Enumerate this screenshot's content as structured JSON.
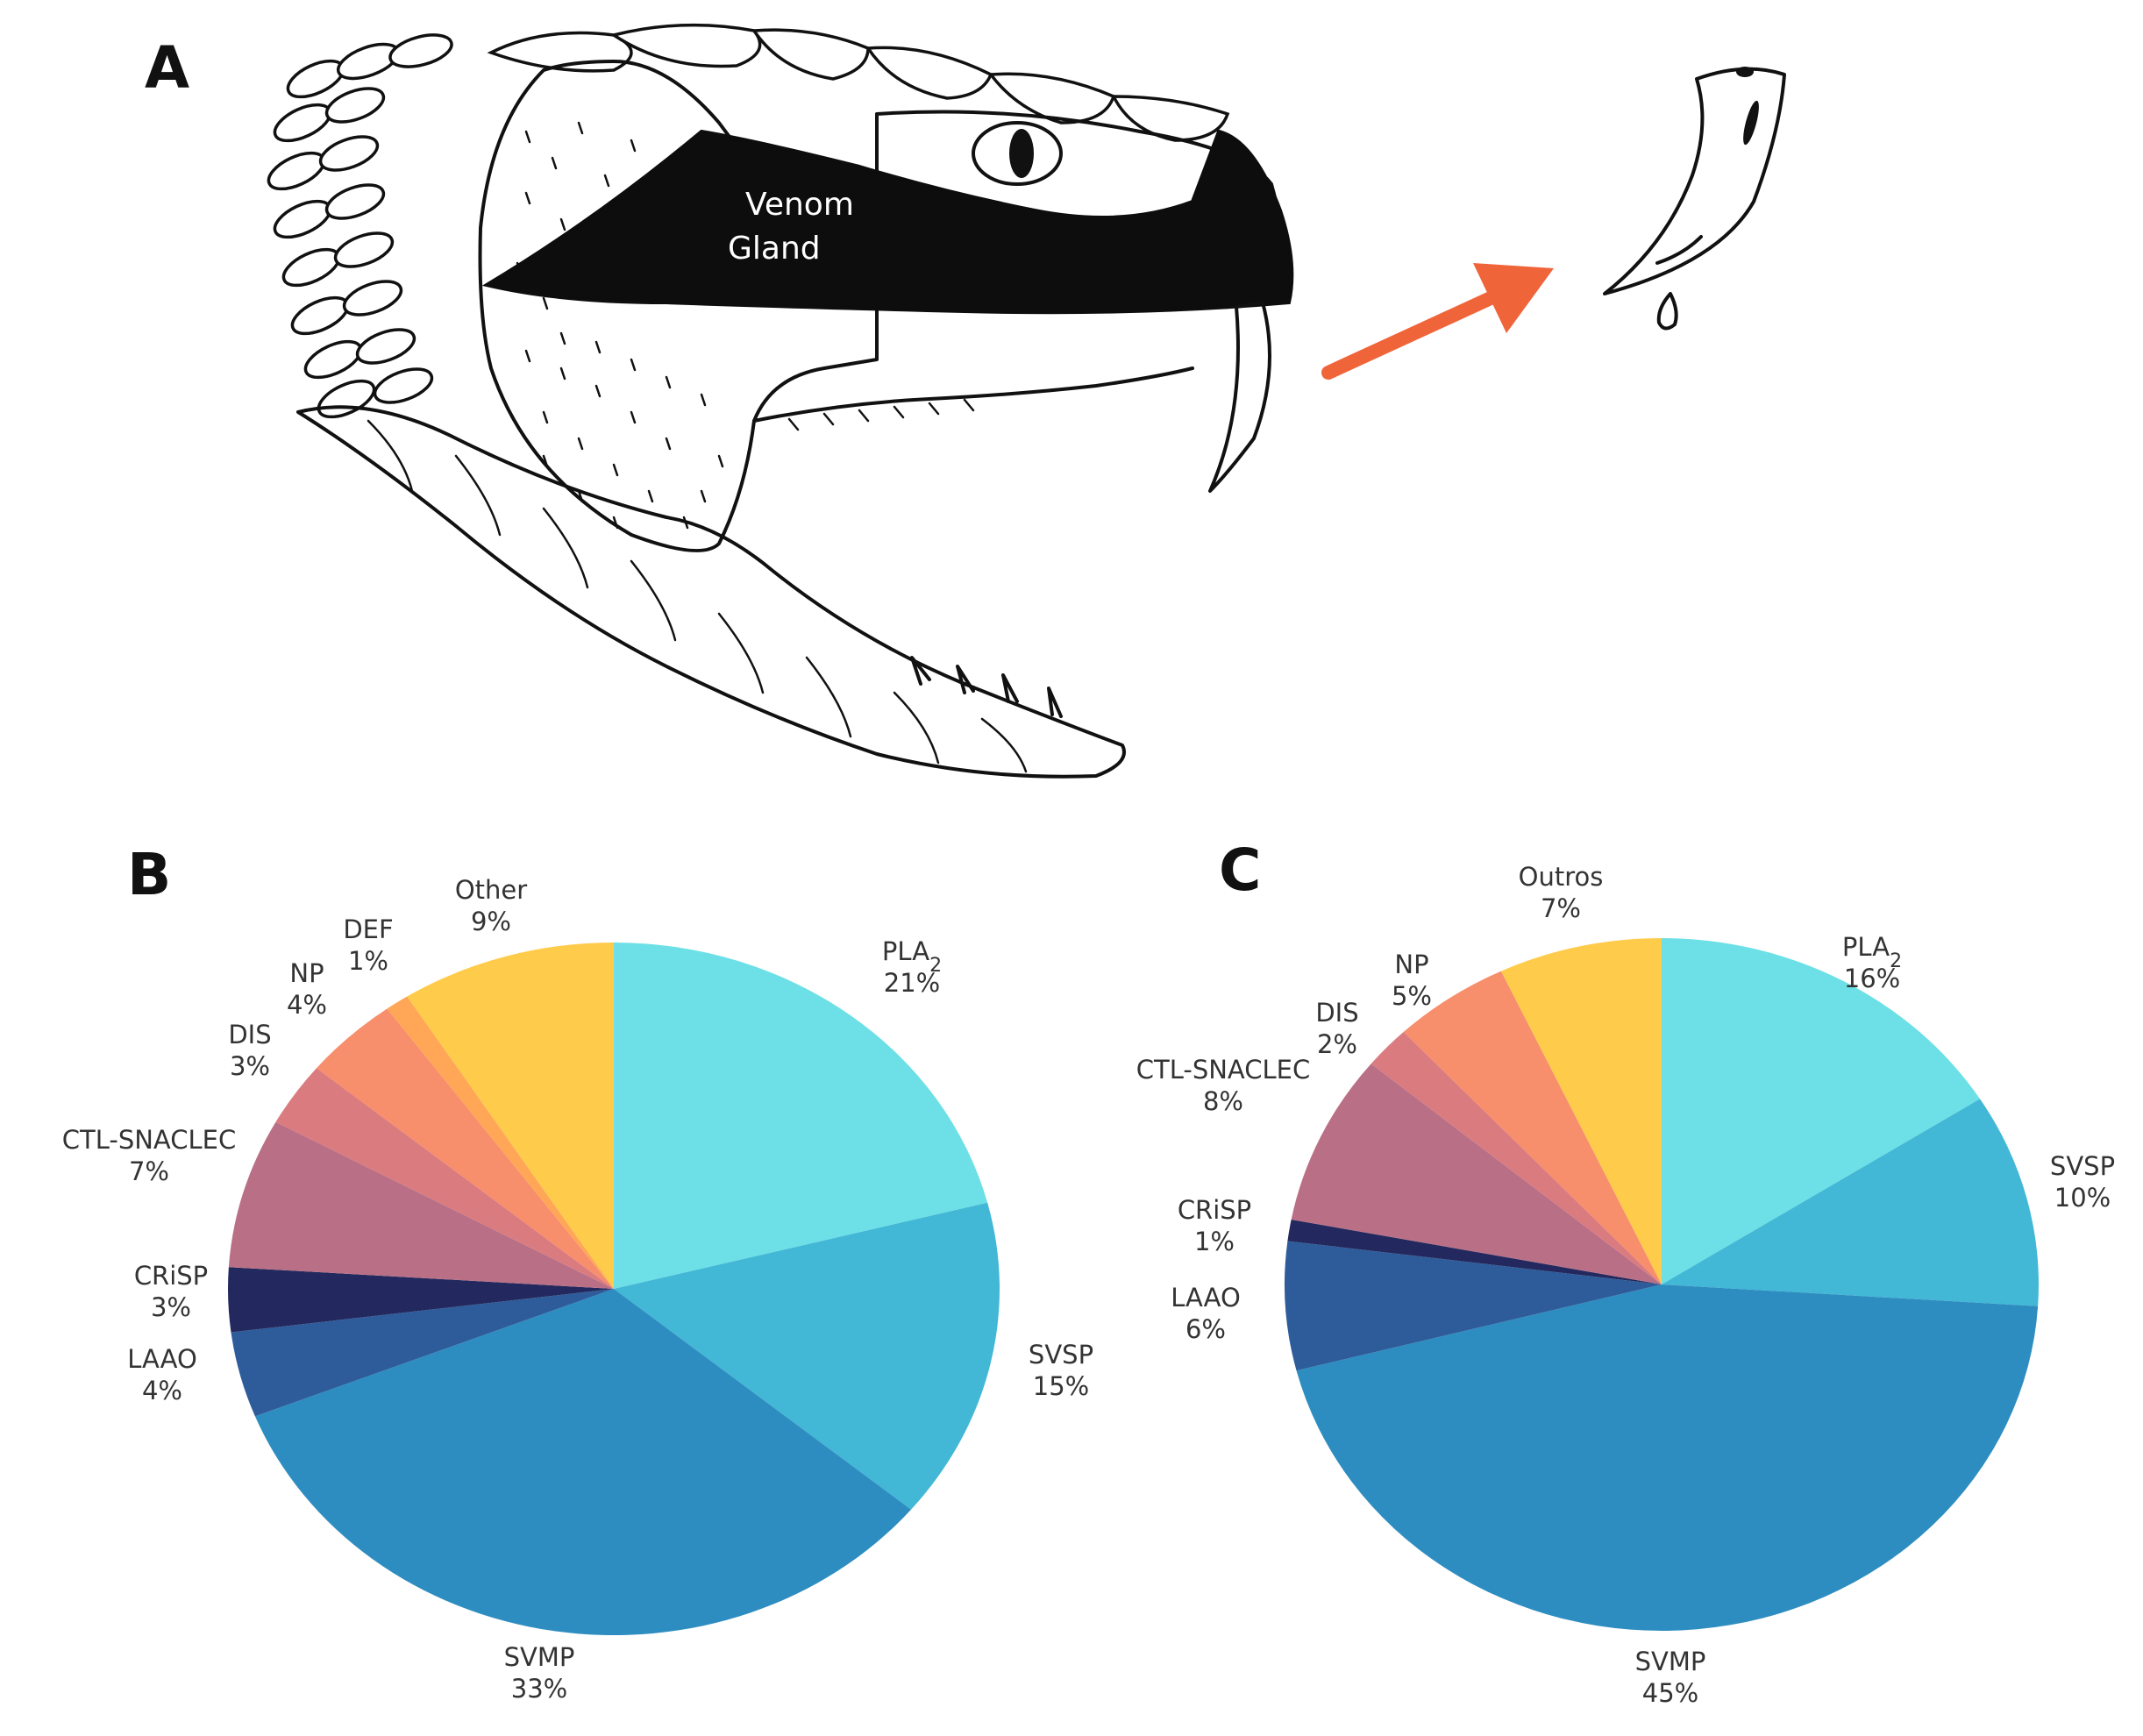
{
  "panels": {
    "a_letter": "A",
    "b_letter": "B",
    "c_letter": "C"
  },
  "illustration": {
    "gland_label_line1": "Venom",
    "gland_label_line2": "Gland",
    "arrow_color": "#F0643A"
  },
  "chart_data": [
    {
      "type": "pie",
      "panel": "B",
      "start": "top",
      "direction": "clockwise",
      "slices": [
        {
          "label": "PLA",
          "sub": "2",
          "value": 21,
          "display": "21%",
          "color": "#6CE0E6"
        },
        {
          "label": "SVSP",
          "sub": "",
          "value": 15,
          "display": "15%",
          "color": "#42B7D6"
        },
        {
          "label": "SVMP",
          "sub": "",
          "value": 33,
          "display": "33%",
          "color": "#2E8DC0"
        },
        {
          "label": "LAAO",
          "sub": "",
          "value": 4,
          "display": "4%",
          "color": "#2E5C9A"
        },
        {
          "label": "CRiSP",
          "sub": "",
          "value": 3,
          "display": "3%",
          "color": "#23295E"
        },
        {
          "label": "CTL-SNACLEC",
          "sub": "",
          "value": 7,
          "display": "7%",
          "color": "#B97086"
        },
        {
          "label": "DIS",
          "sub": "",
          "value": 3,
          "display": "3%",
          "color": "#DA7B80"
        },
        {
          "label": "NP",
          "sub": "",
          "value": 4,
          "display": "4%",
          "color": "#F78E6C"
        },
        {
          "label": "DEF",
          "sub": "",
          "value": 1,
          "display": "1%",
          "color": "#FFA756"
        },
        {
          "label": "Other",
          "sub": "",
          "value": 9,
          "display": "9%",
          "color": "#FFCB4B"
        }
      ]
    },
    {
      "type": "pie",
      "panel": "C",
      "start": "top",
      "direction": "clockwise",
      "slices": [
        {
          "label": "PLA",
          "sub": "2",
          "value": 16,
          "display": "16%",
          "color": "#6CE0E6"
        },
        {
          "label": "SVSP",
          "sub": "",
          "value": 10,
          "display": "10%",
          "color": "#42B7D6"
        },
        {
          "label": "SVMP",
          "sub": "",
          "value": 45,
          "display": "45%",
          "color": "#2E8DC0"
        },
        {
          "label": "LAAO",
          "sub": "",
          "value": 6,
          "display": "6%",
          "color": "#2E5C9A"
        },
        {
          "label": "CRiSP",
          "sub": "",
          "value": 1,
          "display": "1%",
          "color": "#23295E"
        },
        {
          "label": "CTL-SNACLEC",
          "sub": "",
          "value": 8,
          "display": "8%",
          "color": "#B97086"
        },
        {
          "label": "DIS",
          "sub": "",
          "value": 2,
          "display": "2%",
          "color": "#DA7B80"
        },
        {
          "label": "NP",
          "sub": "",
          "value": 5,
          "display": "5%",
          "color": "#F78E6C"
        },
        {
          "label": "Outros",
          "sub": "",
          "value": 7,
          "display": "7%",
          "color": "#FFCB4B"
        }
      ]
    }
  ]
}
